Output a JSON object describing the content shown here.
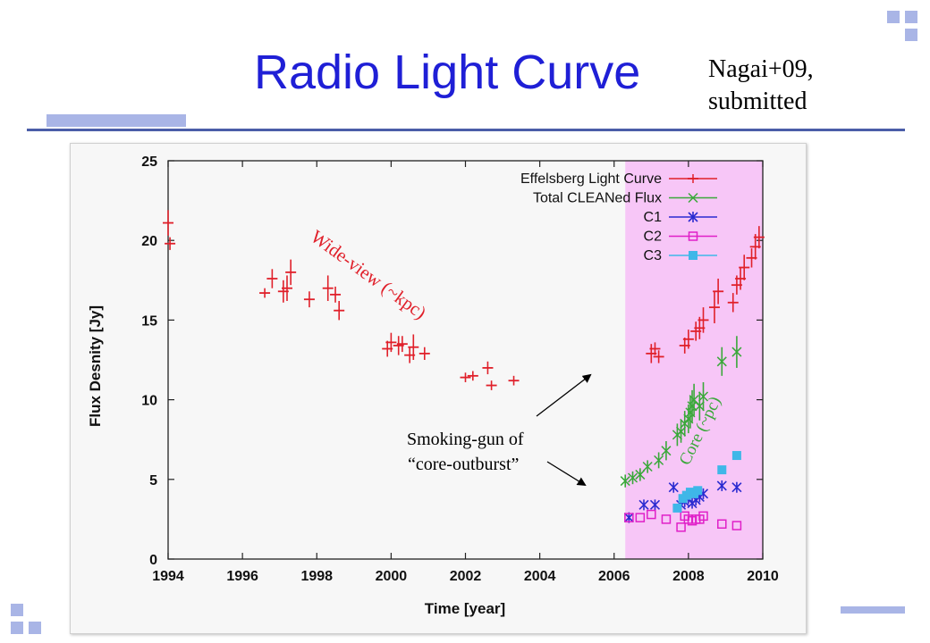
{
  "slide": {
    "title": "Radio Light Curve",
    "citation_line1": "Nagai+09,",
    "citation_line2": "submitted"
  },
  "chart_data": {
    "type": "scatter",
    "xlabel": "Time [year]",
    "ylabel": "Flux Desnity [Jy]",
    "xlim": [
      1994,
      2010
    ],
    "ylim": [
      0,
      25
    ],
    "x_ticks": [
      1994,
      1996,
      1998,
      2000,
      2002,
      2004,
      2006,
      2008,
      2010
    ],
    "y_ticks": [
      0,
      5,
      10,
      15,
      20,
      25
    ],
    "x_tick_labels": [
      "1994",
      "1996",
      "1998",
      "2000",
      "2002",
      "2004",
      "2006",
      "2008",
      "2010"
    ],
    "y_tick_labels": [
      "0",
      "5",
      "10",
      "15",
      "20",
      "25"
    ],
    "legend_position": "top-right",
    "highlight_region": {
      "x_start": 2006.3,
      "x_end": 2010,
      "color": "#f7c6f7"
    },
    "series": [
      {
        "name": "Effelsberg Light Curve",
        "color": "#e0202a",
        "marker": "errorbar",
        "points": [
          [
            1994.0,
            21.1,
            0.8
          ],
          [
            1994.05,
            19.8,
            0.4
          ],
          [
            1996.6,
            16.7,
            0.3
          ],
          [
            1996.8,
            17.6,
            0.6
          ],
          [
            1997.1,
            16.8,
            0.7
          ],
          [
            1997.2,
            17.0,
            0.8
          ],
          [
            1997.3,
            18.0,
            0.8
          ],
          [
            1997.8,
            16.3,
            0.5
          ],
          [
            1998.3,
            17.0,
            0.8
          ],
          [
            1998.5,
            16.6,
            0.5
          ],
          [
            1998.6,
            15.6,
            0.6
          ],
          [
            1999.9,
            13.2,
            0.5
          ],
          [
            2000.0,
            13.6,
            0.6
          ],
          [
            2000.2,
            13.4,
            0.6
          ],
          [
            2000.3,
            13.5,
            0.5
          ],
          [
            2000.5,
            12.8,
            0.5
          ],
          [
            2000.6,
            13.3,
            0.8
          ],
          [
            2000.9,
            12.9,
            0.4
          ],
          [
            2002.0,
            11.4,
            0.3
          ],
          [
            2002.2,
            11.5,
            0.3
          ],
          [
            2002.6,
            12.0,
            0.4
          ],
          [
            2002.7,
            10.9,
            0.3
          ],
          [
            2003.3,
            11.2,
            0.3
          ],
          [
            2007.0,
            12.9,
            0.6
          ],
          [
            2007.1,
            13.2,
            0.4
          ],
          [
            2007.2,
            12.7,
            0.4
          ],
          [
            2007.9,
            13.4,
            0.5
          ],
          [
            2008.0,
            13.8,
            0.6
          ],
          [
            2008.2,
            14.3,
            0.6
          ],
          [
            2008.3,
            14.5,
            0.7
          ],
          [
            2008.4,
            15.0,
            0.8
          ],
          [
            2008.7,
            15.8,
            1.0
          ],
          [
            2008.8,
            16.8,
            0.8
          ],
          [
            2009.2,
            16.1,
            0.6
          ],
          [
            2009.3,
            17.2,
            0.6
          ],
          [
            2009.4,
            17.6,
            0.7
          ],
          [
            2009.5,
            18.3,
            0.8
          ],
          [
            2009.7,
            18.9,
            0.6
          ],
          [
            2009.8,
            19.6,
            0.8
          ],
          [
            2009.9,
            20.2,
            0.7
          ]
        ]
      },
      {
        "name": "Total CLEANed Flux",
        "color": "#3aa83a",
        "marker": "x",
        "points": [
          [
            2006.3,
            4.9,
            0.4
          ],
          [
            2006.5,
            5.1,
            0.4
          ],
          [
            2006.7,
            5.3,
            0.4
          ],
          [
            2006.9,
            5.8,
            0.4
          ],
          [
            2007.2,
            6.2,
            0.5
          ],
          [
            2007.4,
            6.8,
            0.6
          ],
          [
            2007.7,
            7.8,
            0.7
          ],
          [
            2007.8,
            8.0,
            0.7
          ],
          [
            2007.9,
            8.5,
            0.8
          ],
          [
            2008.0,
            8.8,
            0.9
          ],
          [
            2008.05,
            9.2,
            1.0
          ],
          [
            2008.1,
            9.6,
            1.0
          ],
          [
            2008.15,
            10.0,
            1.0
          ],
          [
            2008.3,
            9.6,
            0.9
          ],
          [
            2008.4,
            10.2,
            0.9
          ],
          [
            2008.9,
            12.4,
            0.9
          ],
          [
            2009.3,
            13.0,
            1.0
          ]
        ]
      },
      {
        "name": "C1",
        "color": "#2a2ad0",
        "marker": "star",
        "points": [
          [
            2006.4,
            2.6
          ],
          [
            2006.8,
            3.4
          ],
          [
            2007.1,
            3.4
          ],
          [
            2007.6,
            4.5
          ],
          [
            2007.8,
            3.4
          ],
          [
            2007.9,
            3.6
          ],
          [
            2008.0,
            3.8
          ],
          [
            2008.1,
            3.5
          ],
          [
            2008.2,
            3.7
          ],
          [
            2008.3,
            3.9
          ],
          [
            2008.4,
            4.1
          ],
          [
            2008.9,
            4.6
          ],
          [
            2009.3,
            4.5
          ]
        ]
      },
      {
        "name": "C2",
        "color": "#e020c8",
        "marker": "square-open",
        "points": [
          [
            2006.4,
            2.6
          ],
          [
            2006.7,
            2.6
          ],
          [
            2007.0,
            2.8
          ],
          [
            2007.4,
            2.5
          ],
          [
            2007.8,
            2.0
          ],
          [
            2007.9,
            2.7
          ],
          [
            2008.0,
            2.5
          ],
          [
            2008.1,
            2.4
          ],
          [
            2008.2,
            2.5
          ],
          [
            2008.3,
            2.5
          ],
          [
            2008.4,
            2.7
          ],
          [
            2008.9,
            2.2
          ],
          [
            2009.3,
            2.1
          ]
        ]
      },
      {
        "name": "C3",
        "color": "#3fb7e8",
        "marker": "square-filled",
        "points": [
          [
            2007.7,
            3.2
          ],
          [
            2007.85,
            3.8
          ],
          [
            2007.95,
            4.0
          ],
          [
            2008.05,
            4.2
          ],
          [
            2008.15,
            4.1
          ],
          [
            2008.25,
            4.3
          ],
          [
            2008.9,
            5.6
          ],
          [
            2009.3,
            6.5
          ]
        ]
      }
    ],
    "annotations": {
      "wide_view": {
        "text": "Wide-view (~kpc)",
        "color": "#e0202a"
      },
      "core": {
        "text": "Core (~pc)",
        "color": "#3aa83a"
      },
      "smoking_line1": "Smoking-gun of",
      "smoking_line2": "“core-outburst”"
    }
  }
}
